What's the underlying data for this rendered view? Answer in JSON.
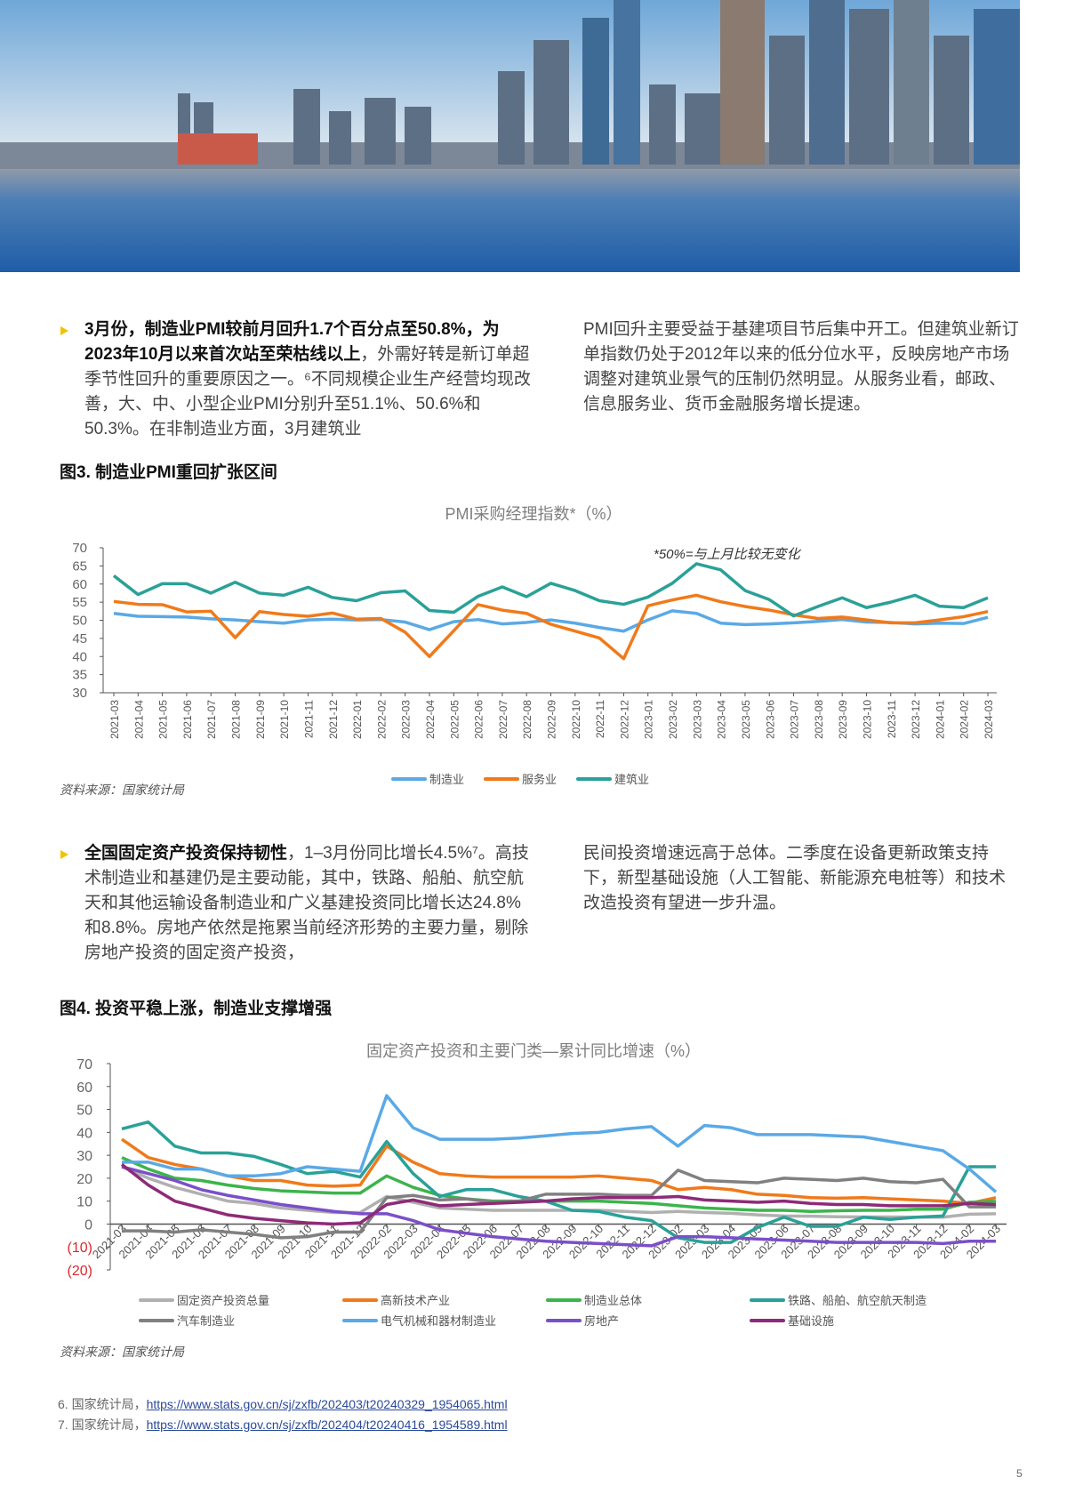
{
  "section1": {
    "bold_lead": "3月份，制造业PMI较前月回升1.7个百分点至50.8%，为2023年10月以来首次站至荣枯线以上",
    "left_rest": "，外需好转是新订单超季节性回升的重要原因之一。⁶不同规模企业生产经营均现改善，大、中、小型企业PMI分别升至51.1%、50.6%和50.3%。在非制造业方面，3月建筑业",
    "right": "PMI回升主要受益于基建项目节后集中开工。但建筑业新订单指数仍处于2012年以来的低分位水平，反映房地产市场调整对建筑业景气的压制仍然明显。从服务业看，邮政、信息服务业、货币金融服务增长提速。"
  },
  "fig3": {
    "title": "图3. 制造业PMI重回扩张区间",
    "source": "资料来源：国家统计局"
  },
  "section2": {
    "bold_lead": "全国固定资产投资保持韧性",
    "left_rest": "，1–3月份同比增长4.5%⁷。高技术制造业和基建仍是主要动能，其中，铁路、船舶、航空航天和其他运输设备制造业和广义基建投资同比增长达24.8%和8.8%。房地产依然是拖累当前经济形势的主要力量，剔除房地产投资的固定资产投资，",
    "right": "民间投资增速远高于总体。二季度在设备更新政策支持下，新型基础设施（人工智能、新能源充电桩等）和技术改造投资有望进一步升温。"
  },
  "fig4": {
    "title": "图4. 投资平稳上涨，制造业支撑增强",
    "source": "资料来源：国家统计局"
  },
  "footnotes": [
    {
      "num": "6.",
      "label": "国家统计局，",
      "url": "https://www.stats.gov.cn/sj/zxfb/202403/t20240329_1954065.html"
    },
    {
      "num": "7.",
      "label": "国家统计局，",
      "url": "https://www.stats.gov.cn/sj/zxfb/202404/t20240416_1954589.html"
    }
  ],
  "page_number": "5",
  "chart_data": [
    {
      "type": "line",
      "title": "PMI采购经理指数*（%）",
      "annotation": "*50%=与上月比较无变化",
      "ylim": [
        30,
        70
      ],
      "yticks": [
        30,
        35,
        40,
        45,
        50,
        55,
        60,
        65,
        70
      ],
      "legend_position": "bottom",
      "categories": [
        "2021-03",
        "2021-04",
        "2021-05",
        "2021-06",
        "2021-07",
        "2021-08",
        "2021-09",
        "2021-10",
        "2021-11",
        "2021-12",
        "2022-01",
        "2022-02",
        "2022-03",
        "2022-04",
        "2022-05",
        "2022-06",
        "2022-07",
        "2022-08",
        "2022-09",
        "2022-10",
        "2022-11",
        "2022-12",
        "2023-01",
        "2023-02",
        "2023-03",
        "2023-04",
        "2023-05",
        "2023-06",
        "2023-07",
        "2023-08",
        "2023-09",
        "2023-10",
        "2023-11",
        "2023-12",
        "2024-01",
        "2024-02",
        "2024-03"
      ],
      "series": [
        {
          "name": "制造业",
          "color": "#5aa9e6",
          "values": [
            51.9,
            51.1,
            51.0,
            50.9,
            50.4,
            50.1,
            49.6,
            49.2,
            50.1,
            50.3,
            50.1,
            50.2,
            49.5,
            47.4,
            49.6,
            50.2,
            49.0,
            49.4,
            50.1,
            49.2,
            48.0,
            47.0,
            50.1,
            52.6,
            51.9,
            49.2,
            48.8,
            49.0,
            49.3,
            49.7,
            50.2,
            49.5,
            49.4,
            49.0,
            49.2,
            49.1,
            50.8
          ]
        },
        {
          "name": "服务业",
          "color": "#f07a1a",
          "values": [
            55.2,
            54.4,
            54.3,
            52.3,
            52.5,
            45.2,
            52.4,
            51.6,
            51.1,
            52.0,
            50.3,
            50.5,
            46.7,
            40.0,
            47.1,
            54.3,
            52.8,
            51.9,
            48.9,
            47.0,
            45.1,
            39.4,
            54.0,
            55.6,
            56.9,
            55.1,
            53.8,
            52.8,
            51.5,
            50.5,
            50.9,
            50.1,
            49.3,
            49.3,
            50.1,
            51.0,
            52.4
          ]
        },
        {
          "name": "建筑业",
          "color": "#2aa198",
          "values": [
            62.3,
            57.1,
            60.1,
            60.1,
            57.5,
            60.5,
            57.5,
            56.9,
            59.1,
            56.3,
            55.4,
            57.6,
            58.1,
            52.7,
            52.2,
            56.6,
            59.2,
            56.5,
            60.2,
            58.2,
            55.4,
            54.4,
            56.4,
            60.2,
            65.6,
            63.9,
            58.2,
            55.7,
            51.2,
            53.8,
            56.2,
            53.5,
            55.0,
            56.9,
            53.9,
            53.5,
            56.2
          ]
        }
      ]
    },
    {
      "type": "line",
      "title": "固定资产投资和主要门类—累计同比增速（%）",
      "ylim": [
        -20,
        70
      ],
      "yticks": [
        "(20)",
        "(10)",
        "0",
        "10",
        "20",
        "30",
        "40",
        "50",
        "60",
        "70"
      ],
      "negative_tick_color": "#e0262b",
      "legend_position": "bottom",
      "categories": [
        "2021-03",
        "2021-04",
        "2021-05",
        "2021-06",
        "2021-07",
        "2021-08",
        "2021-09",
        "2021-10",
        "2021-11",
        "2021-12",
        "2022-02",
        "2022-03",
        "2022-04",
        "2022-05",
        "2022-06",
        "2022-07",
        "2022-08",
        "2022-09",
        "2022-10",
        "2022-11",
        "2022-12",
        "2023-02",
        "2023-03",
        "2023-04",
        "2023-05",
        "2023-06",
        "2023-07",
        "2023-08",
        "2023-09",
        "2023-10",
        "2023-11",
        "2023-12",
        "2024-02",
        "2024-03"
      ],
      "series": [
        {
          "name": "固定资产投资总量",
          "color": "#b0b0b0",
          "values": [
            25,
            20,
            16,
            13,
            10,
            9,
            7,
            6,
            5,
            5,
            12,
            9.5,
            7,
            6.5,
            6,
            6,
            6,
            6,
            6,
            5.5,
            5,
            5.5,
            5,
            4.7,
            4,
            3.5,
            3.4,
            3.2,
            3.1,
            3.1,
            3,
            3,
            4.3,
            4.5
          ]
        },
        {
          "name": "高新技术产业",
          "color": "#f07a1a",
          "values": [
            37,
            29,
            26,
            24,
            21,
            19,
            19,
            17,
            16.5,
            17,
            34,
            27,
            22,
            21,
            20.5,
            20.5,
            20.5,
            20.5,
            21,
            20,
            19,
            15,
            16,
            15,
            13,
            12.5,
            11.5,
            11.3,
            11.5,
            11,
            10.5,
            10,
            9,
            11.5
          ]
        },
        {
          "name": "制造业总体",
          "color": "#3cb44b",
          "values": [
            29,
            24,
            20,
            19,
            17,
            15.5,
            14.5,
            14,
            13.5,
            13.5,
            21,
            16,
            12.5,
            11,
            10,
            10,
            10,
            10,
            10,
            9.5,
            9,
            8,
            7,
            6.5,
            6,
            6,
            5.5,
            5.8,
            6,
            6,
            6.5,
            6.5,
            9.5,
            9.9
          ]
        },
        {
          "name": "铁路、船舶、航空航天制造",
          "color": "#2aa198",
          "values": [
            41.5,
            44.5,
            34,
            31,
            31,
            29.5,
            26,
            22,
            23,
            20.5,
            36,
            22,
            12,
            15,
            15,
            12,
            10,
            6,
            5.5,
            3,
            1.5,
            -6,
            -8,
            -8,
            -1.5,
            3,
            -1,
            -1,
            3,
            2,
            3,
            3.5,
            25,
            25
          ]
        },
        {
          "name": "汽车制造业",
          "color": "#808080",
          "values": [
            -3,
            -3,
            -3.5,
            -2.5,
            -3.5,
            -4.5,
            -6,
            -5.5,
            -3.5,
            -3.5,
            11.5,
            12.5,
            10.5,
            11,
            9.5,
            10,
            13,
            13,
            13,
            12.5,
            12.5,
            23.5,
            19,
            18.5,
            18,
            20,
            19.5,
            19,
            20,
            18.5,
            18,
            19.5,
            7.5,
            7.5
          ]
        },
        {
          "name": "电气机械和器材制造业",
          "color": "#5aa9e6",
          "values": [
            27,
            27,
            24,
            24,
            21,
            21,
            22,
            25,
            24,
            23,
            56,
            42,
            37,
            37,
            37,
            37.5,
            38.5,
            39.5,
            40,
            41.5,
            42.5,
            34,
            43,
            42,
            39,
            39,
            39,
            38.5,
            38,
            36,
            34,
            32,
            24,
            14
          ]
        },
        {
          "name": "房地产",
          "color": "#7b4fc9",
          "values": [
            25,
            22,
            19,
            15,
            12.5,
            10.5,
            8.5,
            7,
            5.5,
            4.5,
            4.5,
            1.5,
            -2.5,
            -4,
            -5.5,
            -6.5,
            -7.5,
            -8,
            -8.5,
            -9,
            -9.5,
            -5.5,
            -5.5,
            -6,
            -6.5,
            -7,
            -7.5,
            -8,
            -8,
            -8,
            -8,
            -8.5,
            -7.5,
            -7.5
          ]
        },
        {
          "name": "基础设施",
          "color": "#8e2a78",
          "values": [
            26,
            17,
            10,
            7,
            4,
            2.5,
            1.5,
            0.5,
            0,
            0.5,
            8.5,
            10.5,
            8,
            8.5,
            9,
            9.5,
            10,
            11,
            11.5,
            11.5,
            11.5,
            12,
            10.5,
            10,
            9.5,
            10,
            9,
            8.5,
            8.5,
            8,
            8,
            8,
            9,
            8.5
          ]
        }
      ]
    }
  ]
}
